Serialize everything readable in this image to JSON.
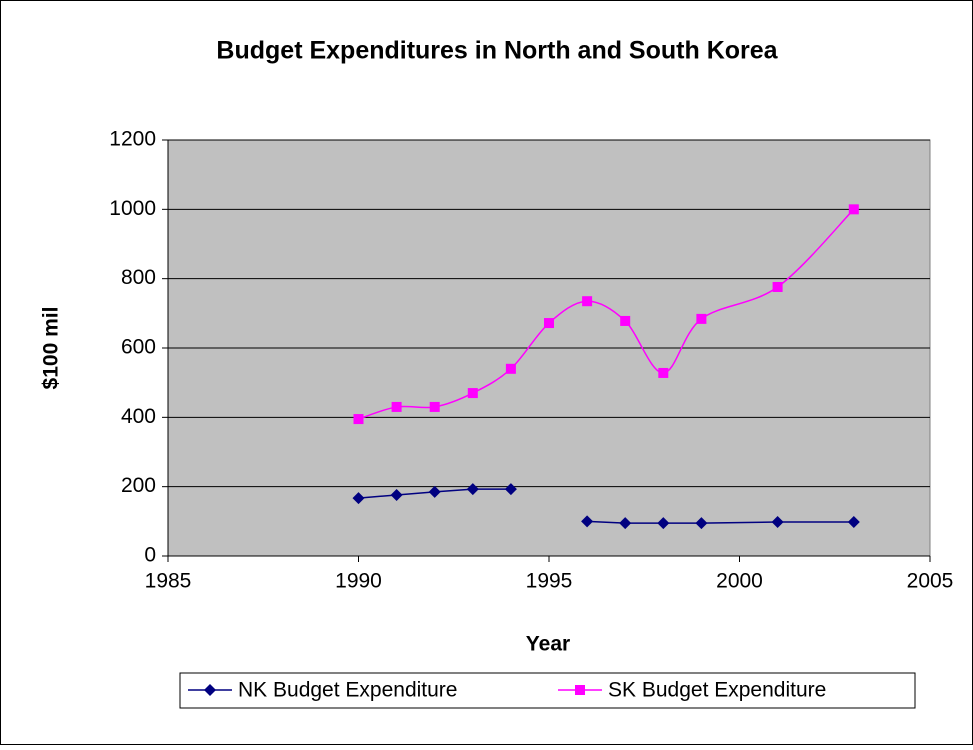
{
  "chart_data": {
    "type": "line",
    "title": "Budget Expenditures in North and South Korea",
    "x_label": "Year",
    "y_label": "$100 mil",
    "x": [
      1990,
      1991,
      1992,
      1993,
      1994,
      1995,
      1996,
      1997,
      1998,
      1999,
      2001,
      2003
    ],
    "series": [
      {
        "name": "NK Budget Expenditure",
        "color": "#000080",
        "marker": "diamond",
        "smooth": false,
        "values": [
          167,
          176,
          185,
          193,
          193,
          null,
          100,
          95,
          95,
          95,
          98,
          98
        ]
      },
      {
        "name": "SK Budget Expenditure",
        "color": "#ff00ff",
        "marker": "square",
        "smooth": true,
        "values": [
          395,
          430,
          430,
          470,
          540,
          672,
          735,
          678,
          528,
          684,
          776,
          1000
        ]
      }
    ],
    "xlim": [
      1985,
      2005
    ],
    "xticks": [
      1985,
      1990,
      1995,
      2000,
      2005
    ],
    "ylim": [
      0,
      1200
    ],
    "yticks": [
      0,
      200,
      400,
      600,
      800,
      1000,
      1200
    ],
    "grid": true,
    "legend": "bottom",
    "plot_background": "#c0c0c0"
  }
}
